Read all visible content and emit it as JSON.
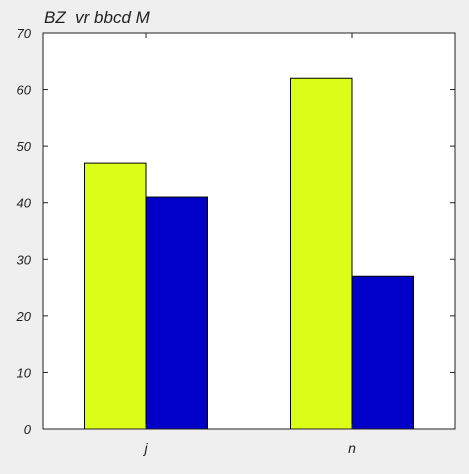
{
  "chart_data": {
    "type": "bar",
    "title": "BZ  vr bbcd M",
    "xlabel": "",
    "ylabel": "",
    "categories": [
      "j",
      "n"
    ],
    "series": [
      {
        "values": [
          47,
          62
        ],
        "color": "#dcff1a"
      },
      {
        "values": [
          41,
          27
        ],
        "color": "#0000c8"
      }
    ],
    "ylim": [
      0,
      70
    ],
    "yticks": [
      0,
      10,
      20,
      30,
      40,
      50,
      60,
      70
    ],
    "grid": false,
    "legend": "none"
  },
  "style": {
    "background": "#efefef",
    "plot_background": "#ffffff",
    "axis_color": "#222222"
  }
}
